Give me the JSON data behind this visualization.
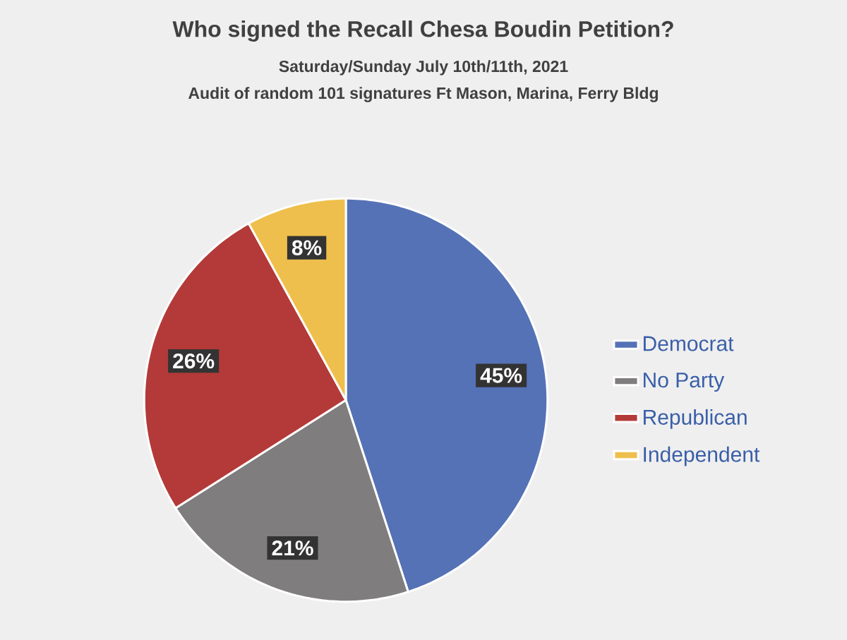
{
  "chart_data": {
    "type": "pie",
    "title": "Who signed the Recall Chesa Boudin Petition?",
    "subtitle": "Saturday/Sunday July 10th/11th, 2021",
    "annotations": [
      "Audit of random 101 signatures Ft Mason, Marina, Ferry Bldg"
    ],
    "categories": [
      "Democrat",
      "No Party",
      "Republican",
      "Independent"
    ],
    "values": [
      45,
      21,
      26,
      8
    ],
    "value_labels": [
      "45%",
      "21%",
      "26%",
      "8%"
    ],
    "colors": [
      "#5572b6",
      "#7f7d7d",
      "#b33a38",
      "#eebf4c"
    ],
    "legend": "right"
  }
}
